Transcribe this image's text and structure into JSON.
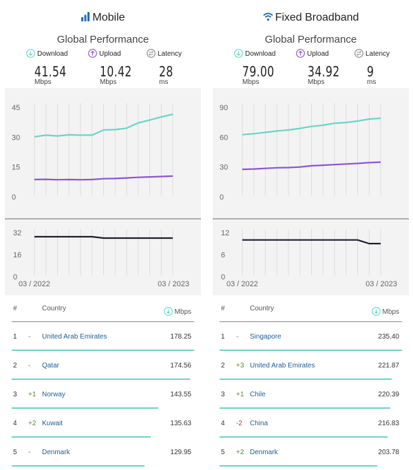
{
  "panels": [
    {
      "id": "mobile",
      "title": "Mobile",
      "title_icon": "signal-bars-icon",
      "subtitle": "Global Performance",
      "metrics": [
        {
          "label": "Download",
          "value": "41.54",
          "unit": "Mbps",
          "icon": "download-arrow-icon"
        },
        {
          "label": "Upload",
          "value": "10.42",
          "unit": "Mbps",
          "icon": "upload-arrow-icon"
        },
        {
          "label": "Latency",
          "value": "28",
          "unit": "ms",
          "icon": "latency-icon"
        }
      ],
      "table": {
        "col_rank": "#",
        "col_country": "Country",
        "col_value": "Mbps",
        "rows": [
          {
            "rank": "1",
            "change": "-",
            "country": "United Arab Emirates",
            "value": "178.25",
            "share": 1.0
          },
          {
            "rank": "2",
            "change": "-",
            "country": "Qatar",
            "value": "174.56",
            "share": 0.979
          },
          {
            "rank": "3",
            "change": "+1",
            "country": "Norway",
            "value": "143.55",
            "share": 0.805
          },
          {
            "rank": "4",
            "change": "+2",
            "country": "Kuwait",
            "value": "135.63",
            "share": 0.761
          },
          {
            "rank": "5",
            "change": "-",
            "country": "Denmark",
            "value": "129.95",
            "share": 0.729
          }
        ]
      }
    },
    {
      "id": "fixed",
      "title": "Fixed Broadband",
      "title_icon": "wifi-icon",
      "subtitle": "Global Performance",
      "metrics": [
        {
          "label": "Download",
          "value": "79.00",
          "unit": "Mbps",
          "icon": "download-arrow-icon"
        },
        {
          "label": "Upload",
          "value": "34.92",
          "unit": "Mbps",
          "icon": "upload-arrow-icon"
        },
        {
          "label": "Latency",
          "value": "9",
          "unit": "ms",
          "icon": "latency-icon"
        }
      ],
      "table": {
        "col_rank": "#",
        "col_country": "Country",
        "col_value": "Mbps",
        "rows": [
          {
            "rank": "1",
            "change": "-",
            "country": "Singapore",
            "value": "235.40",
            "share": 1.0
          },
          {
            "rank": "2",
            "change": "+3",
            "country": "United Arab Emirates",
            "value": "221.87",
            "share": 0.943
          },
          {
            "rank": "3",
            "change": "+1",
            "country": "Chile",
            "value": "220.39",
            "share": 0.936
          },
          {
            "rank": "4",
            "change": "-2",
            "country": "China",
            "value": "216.83",
            "share": 0.921
          },
          {
            "rank": "5",
            "change": "+2",
            "country": "Denmark",
            "value": "203.78",
            "share": 0.866
          }
        ]
      }
    }
  ],
  "colors": {
    "download": "#6dd3c8",
    "upload": "#8a55d0",
    "latency": "#1e1e2e",
    "grid": "#dddddd",
    "chart_bg": "#f3f3f3",
    "country_link": "#1f5e8f"
  },
  "chart_data": [
    {
      "type": "line",
      "panel": "mobile",
      "x": [
        "03/2022",
        "04/2022",
        "05/2022",
        "06/2022",
        "07/2022",
        "08/2022",
        "09/2022",
        "10/2022",
        "11/2022",
        "12/2022",
        "01/2023",
        "02/2023",
        "03/2023"
      ],
      "x_tick_labels": [
        "03 / 2022",
        "03 / 2023"
      ],
      "speed": {
        "ylim": [
          0,
          45
        ],
        "yticks": [
          "45",
          "30",
          "15",
          "0"
        ],
        "series": [
          {
            "key": "download",
            "values": [
              30.2,
              31.0,
              30.6,
              31.2,
              31.0,
              31.0,
              33.6,
              33.8,
              34.5,
              37.2,
              38.6,
              40.2,
              41.54
            ]
          },
          {
            "key": "upload",
            "values": [
              8.7,
              8.8,
              8.6,
              8.7,
              8.6,
              8.7,
              9.1,
              9.2,
              9.5,
              9.8,
              10.0,
              10.2,
              10.42
            ]
          }
        ]
      },
      "latency": {
        "ylim": [
          0,
          32
        ],
        "yticks": [
          "32",
          "16",
          "0"
        ],
        "series": [
          {
            "key": "latency",
            "values": [
              29,
              29,
              29,
              29,
              29,
              29,
              28,
              28,
              28,
              28,
              28,
              28,
              28
            ]
          }
        ]
      }
    },
    {
      "type": "line",
      "panel": "fixed",
      "x": [
        "03/2022",
        "04/2022",
        "05/2022",
        "06/2022",
        "07/2022",
        "08/2022",
        "09/2022",
        "10/2022",
        "11/2022",
        "12/2022",
        "01/2023",
        "02/2023",
        "03/2023"
      ],
      "x_tick_labels": [
        "03 / 2022",
        "03 / 2023"
      ],
      "speed": {
        "ylim": [
          0,
          90
        ],
        "yticks": [
          "90",
          "60",
          "30",
          "0"
        ],
        "series": [
          {
            "key": "download",
            "values": [
              62.5,
              63.5,
              64.8,
              66.2,
              67.2,
              68.8,
              70.8,
              72.0,
              74.0,
              74.8,
              76.2,
              78.2,
              79.0
            ]
          },
          {
            "key": "upload",
            "values": [
              27.6,
              28.0,
              28.6,
              29.2,
              29.4,
              30.0,
              31.2,
              31.8,
              32.4,
              33.0,
              33.6,
              34.4,
              34.92
            ]
          }
        ]
      },
      "latency": {
        "ylim": [
          0,
          12
        ],
        "yticks": [
          "12",
          "6",
          "0"
        ],
        "series": [
          {
            "key": "latency",
            "values": [
              10,
              10,
              10,
              10,
              10,
              10,
              10,
              10,
              10,
              10,
              10,
              9,
              9
            ]
          }
        ]
      }
    }
  ]
}
